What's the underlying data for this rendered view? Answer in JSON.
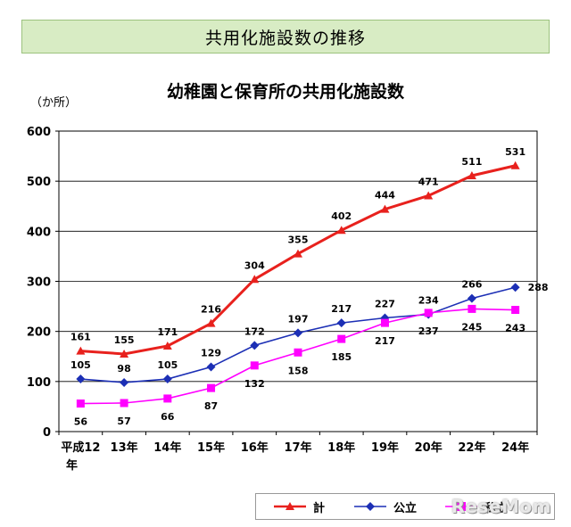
{
  "banner": {
    "title": "共用化施設数の推移"
  },
  "chart_data": {
    "type": "line",
    "title": "幼稚園と保育所の共用化施設数",
    "ylabel": "（か所）",
    "xlabel": "",
    "ylim": [
      0,
      600
    ],
    "yticks": [
      0,
      100,
      200,
      300,
      400,
      500,
      600
    ],
    "categories": [
      "平成12年",
      "13年",
      "14年",
      "15年",
      "16年",
      "17年",
      "18年",
      "19年",
      "20年",
      "22年",
      "24年"
    ],
    "series": [
      {
        "name": "計",
        "color": "#e8211d",
        "marker": "triangle",
        "values": [
          161,
          155,
          171,
          216,
          304,
          355,
          402,
          444,
          471,
          511,
          531
        ]
      },
      {
        "name": "公立",
        "color": "#1c2fb5",
        "marker": "diamond",
        "values": [
          105,
          98,
          105,
          129,
          172,
          197,
          217,
          227,
          234,
          266,
          288
        ]
      },
      {
        "name": "私立",
        "color": "#ff00ff",
        "marker": "square",
        "values": [
          56,
          57,
          66,
          87,
          132,
          158,
          185,
          217,
          237,
          245,
          243
        ]
      }
    ],
    "grid": true,
    "legend_position": "bottom-right"
  },
  "watermark": {
    "text": "ReseMom"
  }
}
